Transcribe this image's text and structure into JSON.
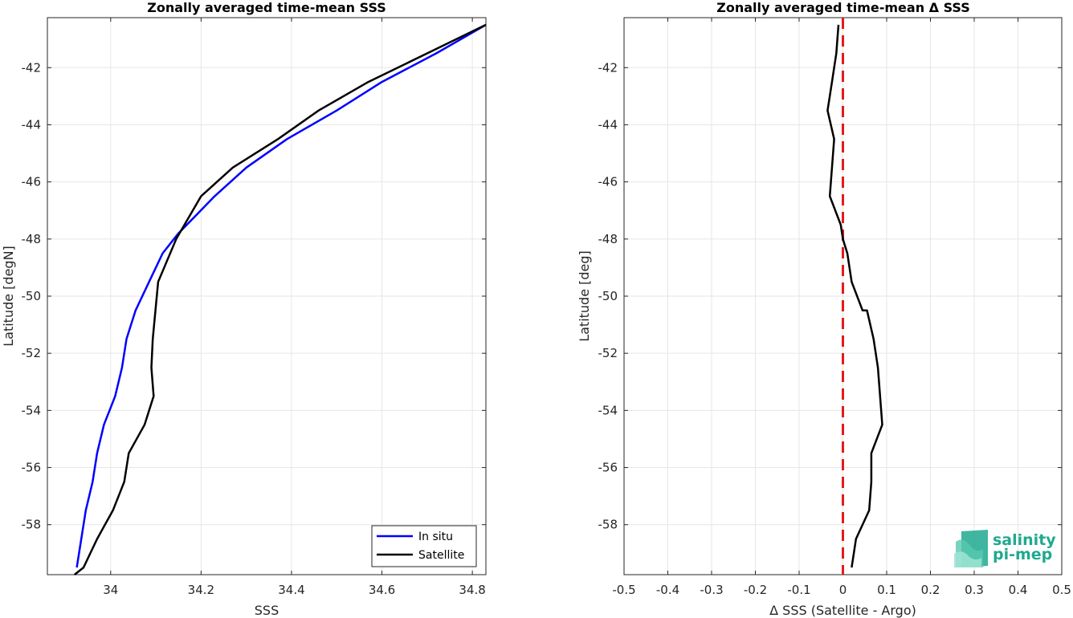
{
  "chart_data": [
    {
      "type": "line",
      "title": "Zonally averaged time-mean SSS",
      "xlabel": "SSS",
      "ylabel": "Latitude [degN]",
      "xlim": [
        33.86,
        34.83
      ],
      "ylim": [
        -59.75,
        -40.25
      ],
      "xticks": [
        34,
        34.2,
        34.4,
        34.6,
        34.8
      ],
      "xtick_labels": [
        "34",
        "34.2",
        "34.4",
        "34.6",
        "34.8"
      ],
      "yticks": [
        -58,
        -56,
        -54,
        -52,
        -50,
        -48,
        -46,
        -44,
        -42
      ],
      "ytick_labels": [
        "-58",
        "-56",
        "-54",
        "-52",
        "-50",
        "-48",
        "-46",
        "-44",
        "-42"
      ],
      "grid": true,
      "legend_position": "bottom-right",
      "series": [
        {
          "name": "In situ",
          "color": "#0000ff",
          "x": [
            33.925,
            33.935,
            33.945,
            33.96,
            33.97,
            33.985,
            34.01,
            34.025,
            34.035,
            34.055,
            34.085,
            34.115,
            34.15,
            34.23,
            34.3,
            34.39,
            34.5,
            34.6,
            34.72,
            34.83
          ],
          "y": [
            -59.5,
            -58.5,
            -57.5,
            -56.5,
            -55.5,
            -54.5,
            -53.5,
            -52.5,
            -51.5,
            -50.5,
            -49.5,
            -48.5,
            -47.8,
            -46.5,
            -45.5,
            -44.5,
            -43.5,
            -42.5,
            -41.5,
            -40.5
          ]
        },
        {
          "name": "Satellite",
          "color": "#000000",
          "x": [
            33.92,
            33.94,
            33.97,
            34.005,
            34.03,
            34.04,
            34.075,
            34.095,
            34.09,
            34.093,
            34.105,
            34.145,
            34.2,
            34.27,
            34.37,
            34.46,
            34.57,
            34.7,
            34.83
          ],
          "y": [
            -59.75,
            -59.5,
            -58.5,
            -57.5,
            -56.5,
            -55.5,
            -54.5,
            -53.5,
            -52.5,
            -51.5,
            -49.5,
            -48.0,
            -46.5,
            -45.5,
            -44.5,
            -43.5,
            -42.5,
            -41.5,
            -40.5
          ]
        }
      ]
    },
    {
      "type": "line",
      "title": "Zonally averaged time-mean Δ SSS",
      "xlabel": "Δ SSS (Satellite - Argo)",
      "ylabel": "Latitude [deg]",
      "xlim": [
        -0.5,
        0.5
      ],
      "ylim": [
        -59.75,
        -40.25
      ],
      "xticks": [
        -0.5,
        -0.4,
        -0.3,
        -0.2,
        -0.1,
        0,
        0.1,
        0.2,
        0.3,
        0.4,
        0.5
      ],
      "xtick_labels": [
        "-0.5",
        "-0.4",
        "-0.3",
        "-0.2",
        "-0.1",
        "0",
        "0.1",
        "0.2",
        "0.3",
        "0.4",
        "0.5"
      ],
      "yticks": [
        -58,
        -56,
        -54,
        -52,
        -50,
        -48,
        -46,
        -44,
        -42
      ],
      "ytick_labels": [
        "-58",
        "-56",
        "-54",
        "-52",
        "-50",
        "-48",
        "-46",
        "-44",
        "-42"
      ],
      "grid": true,
      "reference_line": {
        "x": 0,
        "color": "#e41a1c",
        "style": "dashed"
      },
      "series": [
        {
          "color": "#000000",
          "x": [
            0.02,
            0.03,
            0.06,
            0.065,
            0.065,
            0.09,
            0.085,
            0.08,
            0.07,
            0.055,
            0.045,
            0.02,
            0.01,
            0.0,
            -0.005,
            -0.03,
            -0.025,
            -0.02,
            -0.02,
            -0.035,
            -0.025,
            -0.015,
            -0.01
          ],
          "y": [
            -59.5,
            -58.5,
            -57.5,
            -56.5,
            -55.5,
            -54.5,
            -53.5,
            -52.5,
            -51.5,
            -50.5,
            -50.5,
            -49.5,
            -48.5,
            -48.0,
            -47.5,
            -46.5,
            -45.5,
            -44.5,
            -44.5,
            -43.5,
            -42.5,
            -41.5,
            -40.5
          ]
        }
      ]
    }
  ],
  "logo": {
    "line1": "salinity",
    "line2": "pi-mep",
    "color": "#1fa98f"
  }
}
